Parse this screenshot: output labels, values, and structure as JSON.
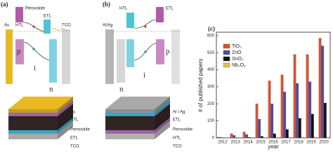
{
  "panel_a": {
    "label": "(a)",
    "band": {
      "htl": "HTL",
      "perovskite": "Perovskite",
      "etl": "ETL",
      "tco": "TCO",
      "metal": "Au",
      "p": "p",
      "i": "i",
      "n": "n"
    },
    "stack_labels": [
      "Au",
      "HTL",
      "Perovskite",
      "ETL",
      "TCO"
    ]
  },
  "panel_b": {
    "label": "(b)",
    "band": {
      "htl": "HTL",
      "etl": "ETL",
      "metal": "Al/Ag",
      "n": "n",
      "i": "i",
      "p": "p"
    },
    "stack_labels": [
      "Al / Ag",
      "ETL",
      "Perovskite",
      "HTL",
      "TCO"
    ]
  },
  "chart_data": {
    "type": "bar",
    "panel_label": "(c)",
    "x_label": "year",
    "y_label": "# of published papers",
    "categories": [
      "2012",
      "2013",
      "2014",
      "2015",
      "2016",
      "2017",
      "2018",
      "2019",
      "2020"
    ],
    "series": [
      {
        "name": "TiO₂",
        "color": "#d9532c",
        "values": [
          5,
          25,
          35,
          200,
          335,
          370,
          490,
          490,
          585
        ]
      },
      {
        "name": "ZnO",
        "color": "#4d4fa6",
        "values": [
          3,
          15,
          20,
          110,
          200,
          270,
          320,
          330,
          540
        ]
      },
      {
        "name": "SnO₂",
        "color": "#111111",
        "values": [
          0,
          2,
          3,
          10,
          25,
          50,
          115,
          140,
          205
        ]
      },
      {
        "name": "Nb₂O₅",
        "color": "#e8c23a",
        "values": [
          0,
          0,
          0,
          2,
          3,
          5,
          5,
          5,
          5
        ]
      }
    ],
    "ylim": [
      0,
      620
    ],
    "yticks": [
      0,
      100,
      200,
      300,
      400,
      500,
      600
    ],
    "legend": "upper-left"
  }
}
